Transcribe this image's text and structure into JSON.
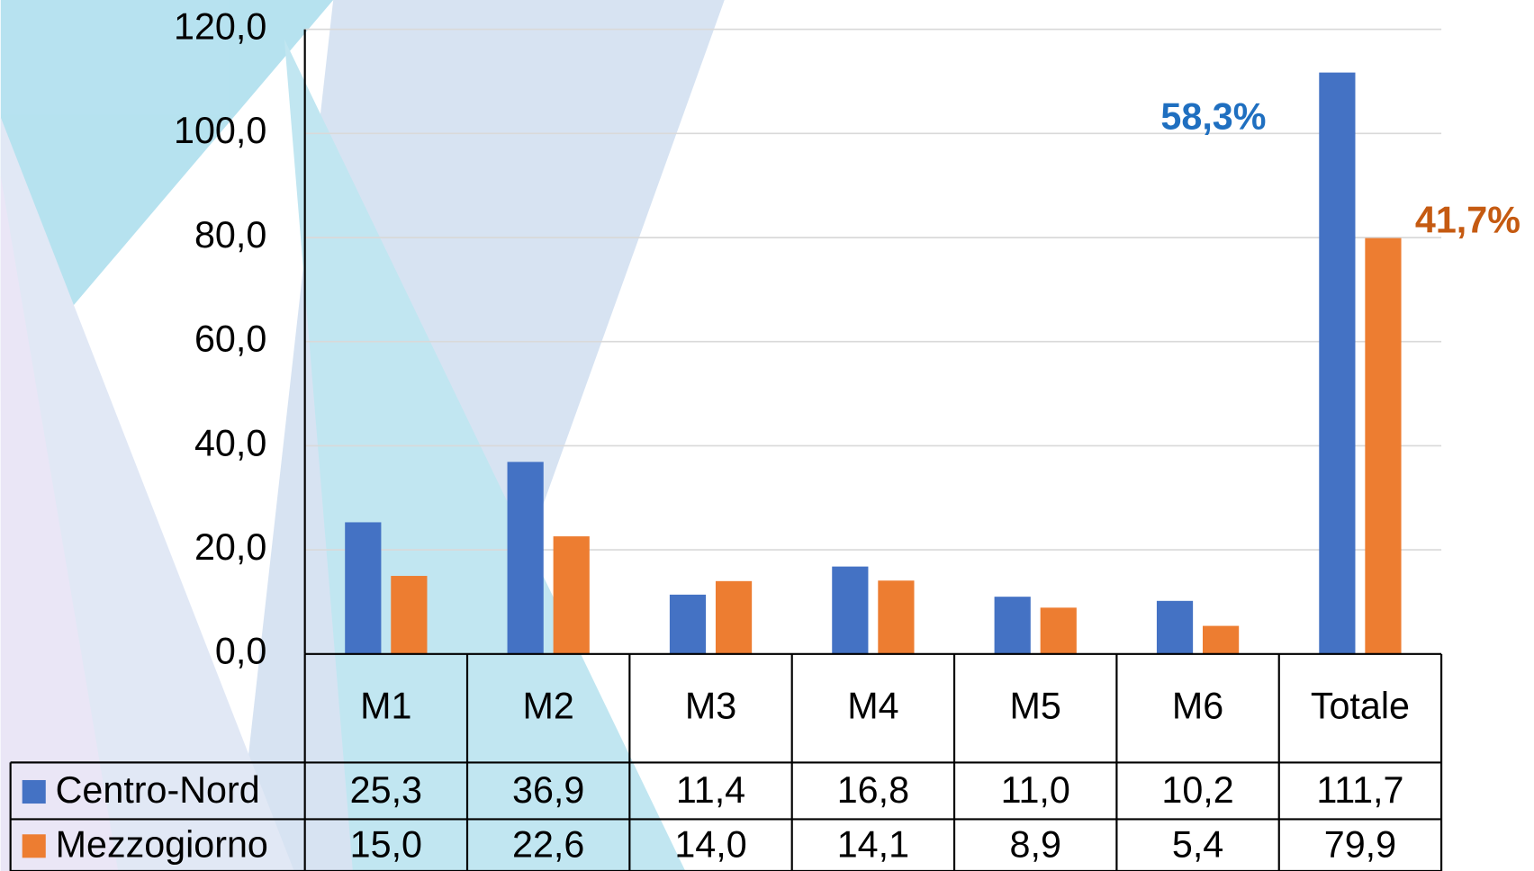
{
  "chart_data": {
    "type": "bar",
    "categories": [
      "M1",
      "M2",
      "M3",
      "M4",
      "M5",
      "M6",
      "Totale"
    ],
    "series": [
      {
        "name": "Centro-Nord",
        "color": "#4472c4",
        "values": [
          25.3,
          36.9,
          11.4,
          16.8,
          11.0,
          10.2,
          111.7
        ],
        "value_labels": [
          "25,3",
          "36,9",
          "11,4",
          "16,8",
          "11,0",
          "10,2",
          "111,7"
        ]
      },
      {
        "name": "Mezzogiorno",
        "color": "#ed7d31",
        "values": [
          15.0,
          22.6,
          14.0,
          14.1,
          8.9,
          5.4,
          79.9
        ],
        "value_labels": [
          "15,0",
          "22,6",
          "14,0",
          "14,1",
          "8,9",
          "5,4",
          "79,9"
        ]
      }
    ],
    "ylim": [
      0,
      120
    ],
    "yticks": [
      {
        "value": 0,
        "label": "0,0"
      },
      {
        "value": 20,
        "label": "20,0"
      },
      {
        "value": 40,
        "label": "40,0"
      },
      {
        "value": 60,
        "label": "60,0"
      },
      {
        "value": 80,
        "label": "80,0"
      },
      {
        "value": 100,
        "label": "100,0"
      },
      {
        "value": 120,
        "label": "120,0"
      }
    ],
    "grid": true,
    "annotations": [
      {
        "text": "58,3%",
        "color": "#1f6fc0"
      },
      {
        "text": "41,7%",
        "color": "#c55a11"
      }
    ]
  }
}
